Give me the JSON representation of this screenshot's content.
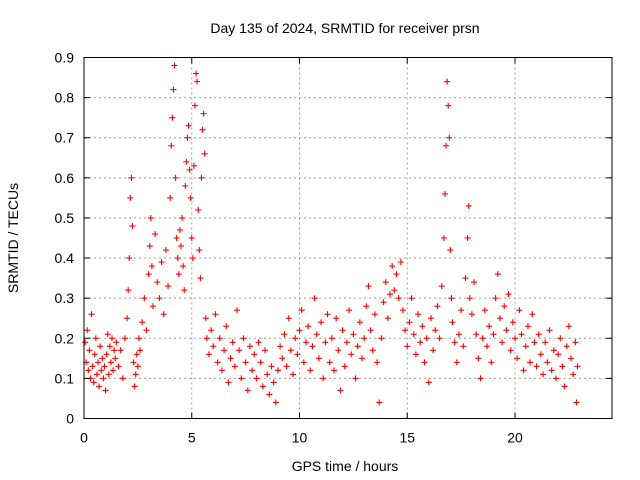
{
  "chart_data": {
    "type": "scatter",
    "title": "Day 135 of 2024, SRMTID for receiver prsn",
    "xlabel": "GPS time / hours",
    "ylabel": "SRMTID / TECUs",
    "xlim": [
      0,
      24.5
    ],
    "ylim": [
      0,
      0.9
    ],
    "xticks": [
      "0",
      "5",
      "10",
      "15",
      "20"
    ],
    "xtick_values": [
      0,
      5,
      10,
      15,
      20
    ],
    "yticks": [
      "0",
      "0.1",
      "0.2",
      "0.3",
      "0.4",
      "0.5",
      "0.6",
      "0.7",
      "0.8",
      "0.9"
    ],
    "ytick_values": [
      0,
      0.1,
      0.2,
      0.3,
      0.4,
      0.5,
      0.6,
      0.7,
      0.8,
      0.9
    ],
    "grid": true,
    "marker": "+",
    "color": "#ff0000",
    "series": [
      {
        "name": "SRMTID",
        "points": [
          [
            0.05,
            0.19
          ],
          [
            0.1,
            0.14
          ],
          [
            0.15,
            0.22
          ],
          [
            0.2,
            0.12
          ],
          [
            0.25,
            0.17
          ],
          [
            0.3,
            0.1
          ],
          [
            0.35,
            0.26
          ],
          [
            0.4,
            0.13
          ],
          [
            0.45,
            0.09
          ],
          [
            0.5,
            0.16
          ],
          [
            0.55,
            0.2
          ],
          [
            0.6,
            0.11
          ],
          [
            0.65,
            0.14
          ],
          [
            0.7,
            0.08
          ],
          [
            0.75,
            0.18
          ],
          [
            0.8,
            0.12
          ],
          [
            0.85,
            0.15
          ],
          [
            0.9,
            0.1
          ],
          [
            0.95,
            0.13
          ],
          [
            1.0,
            0.07
          ],
          [
            1.05,
            0.16
          ],
          [
            1.1,
            0.21
          ],
          [
            1.15,
            0.11
          ],
          [
            1.2,
            0.18
          ],
          [
            1.25,
            0.14
          ],
          [
            1.3,
            0.2
          ],
          [
            1.35,
            0.12
          ],
          [
            1.4,
            0.17
          ],
          [
            1.45,
            0.15
          ],
          [
            1.5,
            0.19
          ],
          [
            1.6,
            0.13
          ],
          [
            1.7,
            0.17
          ],
          [
            1.8,
            0.1
          ],
          [
            1.9,
            0.2
          ],
          [
            2.0,
            0.25
          ],
          [
            2.05,
            0.32
          ],
          [
            2.1,
            0.4
          ],
          [
            2.15,
            0.55
          ],
          [
            2.2,
            0.6
          ],
          [
            2.25,
            0.48
          ],
          [
            2.3,
            0.14
          ],
          [
            2.35,
            0.08
          ],
          [
            2.4,
            0.11
          ],
          [
            2.45,
            0.16
          ],
          [
            2.5,
            0.13
          ],
          [
            2.55,
            0.2
          ],
          [
            2.6,
            0.17
          ],
          [
            2.7,
            0.24
          ],
          [
            2.8,
            0.3
          ],
          [
            2.9,
            0.22
          ],
          [
            3.0,
            0.36
          ],
          [
            3.05,
            0.43
          ],
          [
            3.1,
            0.5
          ],
          [
            3.15,
            0.38
          ],
          [
            3.2,
            0.28
          ],
          [
            3.3,
            0.46
          ],
          [
            3.4,
            0.34
          ],
          [
            3.5,
            0.3
          ],
          [
            3.6,
            0.39
          ],
          [
            3.7,
            0.26
          ],
          [
            3.8,
            0.42
          ],
          [
            3.9,
            0.33
          ],
          [
            4.0,
            0.55
          ],
          [
            4.05,
            0.68
          ],
          [
            4.1,
            0.75
          ],
          [
            4.15,
            0.82
          ],
          [
            4.2,
            0.88
          ],
          [
            4.25,
            0.6
          ],
          [
            4.3,
            0.45
          ],
          [
            4.35,
            0.4
          ],
          [
            4.4,
            0.36
          ],
          [
            4.45,
            0.47
          ],
          [
            4.5,
            0.43
          ],
          [
            4.55,
            0.5
          ],
          [
            4.6,
            0.38
          ],
          [
            4.65,
            0.32
          ],
          [
            4.7,
            0.58
          ],
          [
            4.75,
            0.64
          ],
          [
            4.8,
            0.7
          ],
          [
            4.85,
            0.73
          ],
          [
            4.9,
            0.62
          ],
          [
            4.95,
            0.55
          ],
          [
            5.0,
            0.45
          ],
          [
            5.05,
            0.4
          ],
          [
            5.1,
            0.63
          ],
          [
            5.15,
            0.78
          ],
          [
            5.2,
            0.86
          ],
          [
            5.25,
            0.84
          ],
          [
            5.3,
            0.52
          ],
          [
            5.35,
            0.42
          ],
          [
            5.4,
            0.35
          ],
          [
            5.45,
            0.6
          ],
          [
            5.5,
            0.72
          ],
          [
            5.55,
            0.76
          ],
          [
            5.6,
            0.66
          ],
          [
            5.65,
            0.25
          ],
          [
            5.7,
            0.2
          ],
          [
            5.8,
            0.16
          ],
          [
            5.9,
            0.22
          ],
          [
            6.0,
            0.18
          ],
          [
            6.1,
            0.26
          ],
          [
            6.2,
            0.14
          ],
          [
            6.3,
            0.2
          ],
          [
            6.4,
            0.12
          ],
          [
            6.5,
            0.17
          ],
          [
            6.6,
            0.23
          ],
          [
            6.7,
            0.09
          ],
          [
            6.8,
            0.15
          ],
          [
            6.9,
            0.19
          ],
          [
            7.0,
            0.13
          ],
          [
            7.1,
            0.27
          ],
          [
            7.2,
            0.17
          ],
          [
            7.3,
            0.1
          ],
          [
            7.4,
            0.2
          ],
          [
            7.5,
            0.14
          ],
          [
            7.6,
            0.07
          ],
          [
            7.7,
            0.18
          ],
          [
            7.8,
            0.12
          ],
          [
            7.9,
            0.16
          ],
          [
            8.0,
            0.1
          ],
          [
            8.1,
            0.19
          ],
          [
            8.2,
            0.14
          ],
          [
            8.3,
            0.08
          ],
          [
            8.4,
            0.17
          ],
          [
            8.5,
            0.11
          ],
          [
            8.6,
            0.06
          ],
          [
            8.7,
            0.13
          ],
          [
            8.8,
            0.09
          ],
          [
            8.9,
            0.04
          ],
          [
            9.0,
            0.12
          ],
          [
            9.1,
            0.18
          ],
          [
            9.2,
            0.15
          ],
          [
            9.3,
            0.21
          ],
          [
            9.4,
            0.13
          ],
          [
            9.5,
            0.25
          ],
          [
            9.6,
            0.17
          ],
          [
            9.7,
            0.11
          ],
          [
            9.8,
            0.2
          ],
          [
            9.9,
            0.16
          ],
          [
            10.0,
            0.22
          ],
          [
            10.1,
            0.27
          ],
          [
            10.2,
            0.14
          ],
          [
            10.3,
            0.19
          ],
          [
            10.4,
            0.23
          ],
          [
            10.5,
            0.12
          ],
          [
            10.6,
            0.18
          ],
          [
            10.7,
            0.3
          ],
          [
            10.8,
            0.21
          ],
          [
            10.9,
            0.15
          ],
          [
            11.0,
            0.24
          ],
          [
            11.1,
            0.1
          ],
          [
            11.2,
            0.19
          ],
          [
            11.3,
            0.26
          ],
          [
            11.4,
            0.14
          ],
          [
            11.5,
            0.2
          ],
          [
            11.6,
            0.12
          ],
          [
            11.7,
            0.25
          ],
          [
            11.8,
            0.17
          ],
          [
            11.9,
            0.07
          ],
          [
            12.0,
            0.22
          ],
          [
            12.1,
            0.13
          ],
          [
            12.2,
            0.19
          ],
          [
            12.3,
            0.27
          ],
          [
            12.4,
            0.16
          ],
          [
            12.5,
            0.21
          ],
          [
            12.6,
            0.1
          ],
          [
            12.7,
            0.18
          ],
          [
            12.8,
            0.24
          ],
          [
            12.9,
            0.15
          ],
          [
            13.0,
            0.2
          ],
          [
            13.1,
            0.28
          ],
          [
            13.2,
            0.33
          ],
          [
            13.3,
            0.22
          ],
          [
            13.4,
            0.17
          ],
          [
            13.5,
            0.26
          ],
          [
            13.6,
            0.14
          ],
          [
            13.7,
            0.04
          ],
          [
            13.8,
            0.2
          ],
          [
            13.9,
            0.29
          ],
          [
            14.0,
            0.34
          ],
          [
            14.1,
            0.25
          ],
          [
            14.2,
            0.31
          ],
          [
            14.3,
            0.38
          ],
          [
            14.4,
            0.32
          ],
          [
            14.5,
            0.36
          ],
          [
            14.6,
            0.3
          ],
          [
            14.7,
            0.39
          ],
          [
            14.8,
            0.27
          ],
          [
            14.9,
            0.22
          ],
          [
            15.0,
            0.18
          ],
          [
            15.1,
            0.24
          ],
          [
            15.2,
            0.3
          ],
          [
            15.3,
            0.21
          ],
          [
            15.4,
            0.16
          ],
          [
            15.5,
            0.26
          ],
          [
            15.6,
            0.19
          ],
          [
            15.7,
            0.23
          ],
          [
            15.8,
            0.14
          ],
          [
            15.9,
            0.2
          ],
          [
            16.0,
            0.09
          ],
          [
            16.1,
            0.25
          ],
          [
            16.2,
            0.17
          ],
          [
            16.3,
            0.22
          ],
          [
            16.4,
            0.28
          ],
          [
            16.5,
            0.2
          ],
          [
            16.6,
            0.33
          ],
          [
            16.7,
            0.45
          ],
          [
            16.75,
            0.56
          ],
          [
            16.8,
            0.68
          ],
          [
            16.85,
            0.84
          ],
          [
            16.9,
            0.78
          ],
          [
            16.95,
            0.7
          ],
          [
            17.0,
            0.42
          ],
          [
            17.05,
            0.3
          ],
          [
            17.1,
            0.24
          ],
          [
            17.2,
            0.19
          ],
          [
            17.3,
            0.14
          ],
          [
            17.4,
            0.21
          ],
          [
            17.5,
            0.27
          ],
          [
            17.6,
            0.18
          ],
          [
            17.7,
            0.35
          ],
          [
            17.8,
            0.45
          ],
          [
            17.85,
            0.53
          ],
          [
            17.9,
            0.3
          ],
          [
            18.0,
            0.26
          ],
          [
            18.1,
            0.34
          ],
          [
            18.2,
            0.21
          ],
          [
            18.3,
            0.15
          ],
          [
            18.4,
            0.1
          ],
          [
            18.5,
            0.2
          ],
          [
            18.6,
            0.27
          ],
          [
            18.7,
            0.18
          ],
          [
            18.8,
            0.23
          ],
          [
            18.9,
            0.14
          ],
          [
            19.0,
            0.21
          ],
          [
            19.1,
            0.3
          ],
          [
            19.2,
            0.36
          ],
          [
            19.3,
            0.25
          ],
          [
            19.4,
            0.19
          ],
          [
            19.5,
            0.28
          ],
          [
            19.6,
            0.22
          ],
          [
            19.7,
            0.31
          ],
          [
            19.8,
            0.17
          ],
          [
            19.9,
            0.24
          ],
          [
            20.0,
            0.2
          ],
          [
            20.1,
            0.15
          ],
          [
            20.2,
            0.27
          ],
          [
            20.3,
            0.21
          ],
          [
            20.4,
            0.12
          ],
          [
            20.5,
            0.18
          ],
          [
            20.6,
            0.23
          ],
          [
            20.7,
            0.14
          ],
          [
            20.8,
            0.26
          ],
          [
            20.9,
            0.19
          ],
          [
            21.0,
            0.13
          ],
          [
            21.1,
            0.21
          ],
          [
            21.2,
            0.16
          ],
          [
            21.3,
            0.11
          ],
          [
            21.4,
            0.19
          ],
          [
            21.5,
            0.14
          ],
          [
            21.6,
            0.22
          ],
          [
            21.7,
            0.12
          ],
          [
            21.8,
            0.17
          ],
          [
            21.9,
            0.1
          ],
          [
            22.0,
            0.16
          ],
          [
            22.1,
            0.2
          ],
          [
            22.2,
            0.13
          ],
          [
            22.3,
            0.08
          ],
          [
            22.4,
            0.18
          ],
          [
            22.5,
            0.23
          ],
          [
            22.6,
            0.15
          ],
          [
            22.7,
            0.11
          ],
          [
            22.8,
            0.19
          ],
          [
            22.85,
            0.04
          ],
          [
            22.9,
            0.13
          ]
        ]
      }
    ]
  }
}
